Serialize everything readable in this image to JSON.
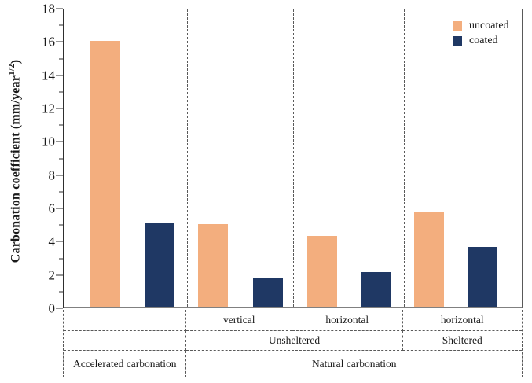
{
  "y_axis": {
    "title_prefix": "Carbonation coefficient (mm/year",
    "title_superscript": "1/2",
    "title_suffix": ")",
    "tick_labels": [
      "0",
      "2",
      "4",
      "6",
      "8",
      "10",
      "12",
      "14",
      "16",
      "18"
    ]
  },
  "legend": {
    "items": [
      {
        "label": "uncoated",
        "color": "#F3AE7E"
      },
      {
        "label": "coated",
        "color": "#1F3864"
      }
    ]
  },
  "chart_data": {
    "type": "bar",
    "title": "",
    "xlabel": "",
    "ylabel": "Carbonation coefficient (mm/year^1/2)",
    "ylim": [
      0,
      18
    ],
    "ytick_step": 2,
    "minor_tick_step": 1,
    "grid": false,
    "legend_position": "top-right-inside",
    "categories": [
      "Accelerated carbonation",
      "Natural carbonation | Unsheltered | vertical",
      "Natural carbonation | Unsheltered | horizontal",
      "Natural carbonation | Sheltered | horizontal"
    ],
    "series": [
      {
        "name": "uncoated",
        "color": "#F3AE7E",
        "values": [
          16.1,
          5.0,
          4.3,
          5.7
        ]
      },
      {
        "name": "coated",
        "color": "#1F3864",
        "values": [
          5.1,
          1.7,
          2.1,
          3.6
        ]
      }
    ]
  },
  "category_table": {
    "row1": {
      "col2": "vertical",
      "col3": "horizontal",
      "col4": "horizontal"
    },
    "row2": {
      "unsheltered": "Unsheltered",
      "sheltered": "Sheltered"
    },
    "row3": {
      "accelerated": "Accelerated carbonation",
      "natural": "Natural carbonation"
    }
  }
}
